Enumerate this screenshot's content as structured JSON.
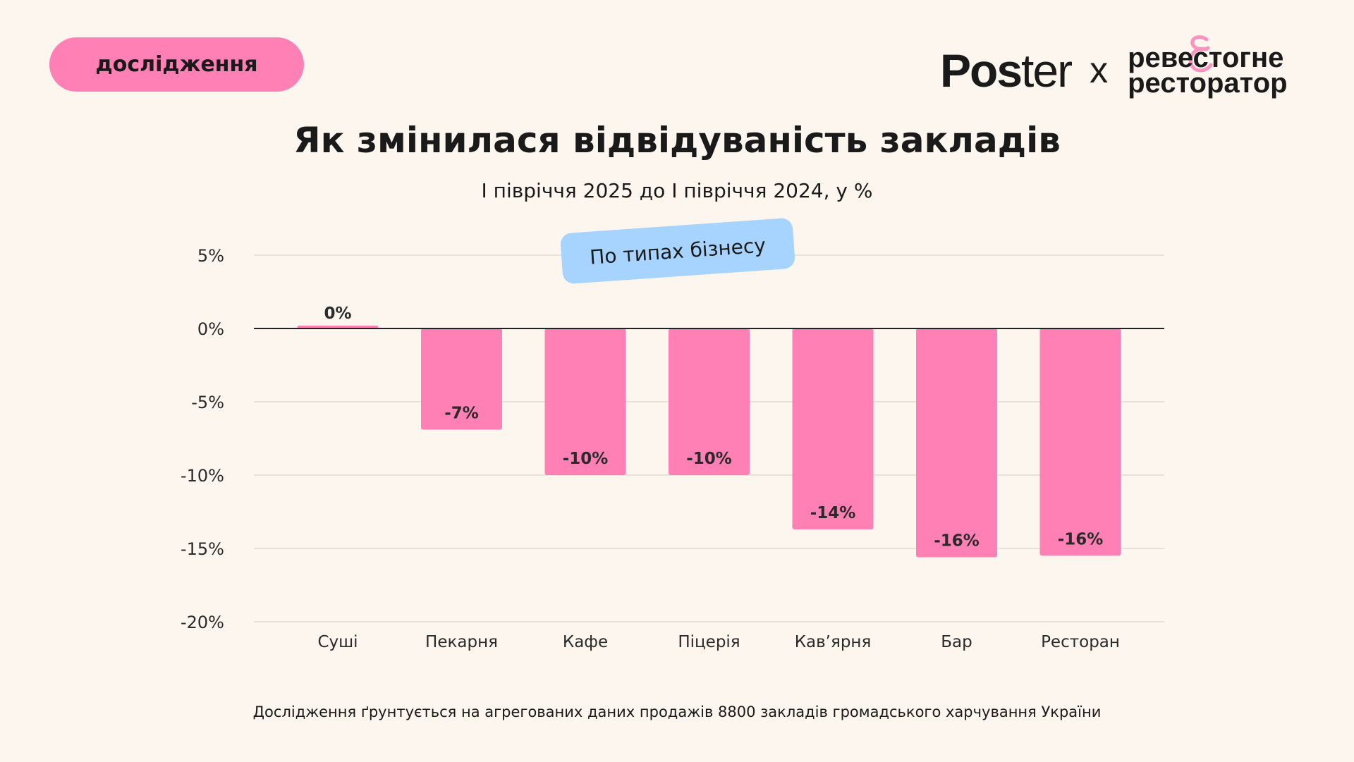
{
  "badge": "дослідження",
  "logo": {
    "left": "Poster",
    "separator": "x",
    "right_line1": "ревестогне",
    "right_line2": "ресторатор",
    "ampersand": "&"
  },
  "colors": {
    "bar": "#ff80b5",
    "tag": "#a6d4ff",
    "background": "#fcf6ee"
  },
  "chart_data": {
    "type": "bar",
    "title": "Як змінилася відвідуваність закладів",
    "subtitle": "І півріччя 2025 до І півріччя 2024, у %",
    "tag": "По типах бізнесу",
    "categories": [
      "Суші",
      "Пекарня",
      "Кафе",
      "Піцерія",
      "Кав’ярня",
      "Бар",
      "Ресторан"
    ],
    "values": [
      0.2,
      -6.9,
      -10,
      -10,
      -13.7,
      -15.6,
      -15.5
    ],
    "data_labels": [
      "0%",
      "-7%",
      "-10%",
      "-10%",
      "-14%",
      "-16%",
      "-16%"
    ],
    "yticks": [
      5,
      0,
      -5,
      -10,
      -15,
      -20
    ],
    "ytick_labels": [
      "5%",
      "0%",
      "-5%",
      "-10%",
      "-15%",
      "-20%"
    ],
    "ylim": [
      -20,
      5
    ],
    "grid": true
  },
  "footer": "Дослідження ґрунтується на агрегованих даних продажів 8800 закладів громадського харчування України"
}
